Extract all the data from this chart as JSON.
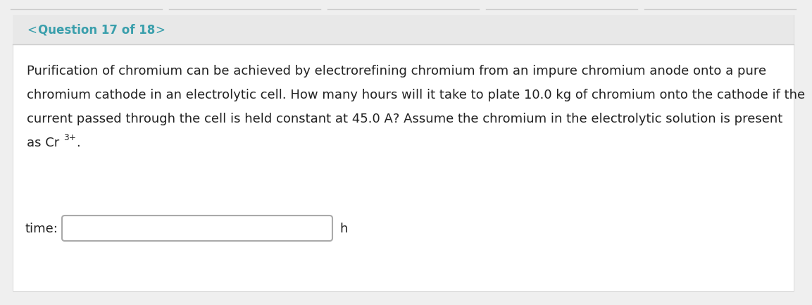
{
  "bg_color": "#ffffff",
  "outer_bg_color": "#efefef",
  "header_bg_color": "#e8e8e8",
  "header_text_color": "#3a9fac",
  "header_text": "Question 17 of 18",
  "body_text_color": "#222222",
  "body_font_size": 13.0,
  "line1": "Purification of chromium can be achieved by electrorefining chromium from an impure chromium anode onto a pure",
  "line2": "chromium cathode in an electrolytic cell. How many hours will it take to plate 10.0 kg of chromium onto the cathode if the",
  "line3": "current passed through the cell is held constant at 45.0 A? Assume the chromium in the electrolytic solution is present",
  "line4_prefix": "as Cr",
  "line4_super": "3⁺",
  "line4_suffix": ".",
  "label_text": "time:",
  "unit_text": "h",
  "input_box_border_color": "#aaaaaa",
  "separator_color": "#cccccc",
  "top_line_color": "#cccccc"
}
